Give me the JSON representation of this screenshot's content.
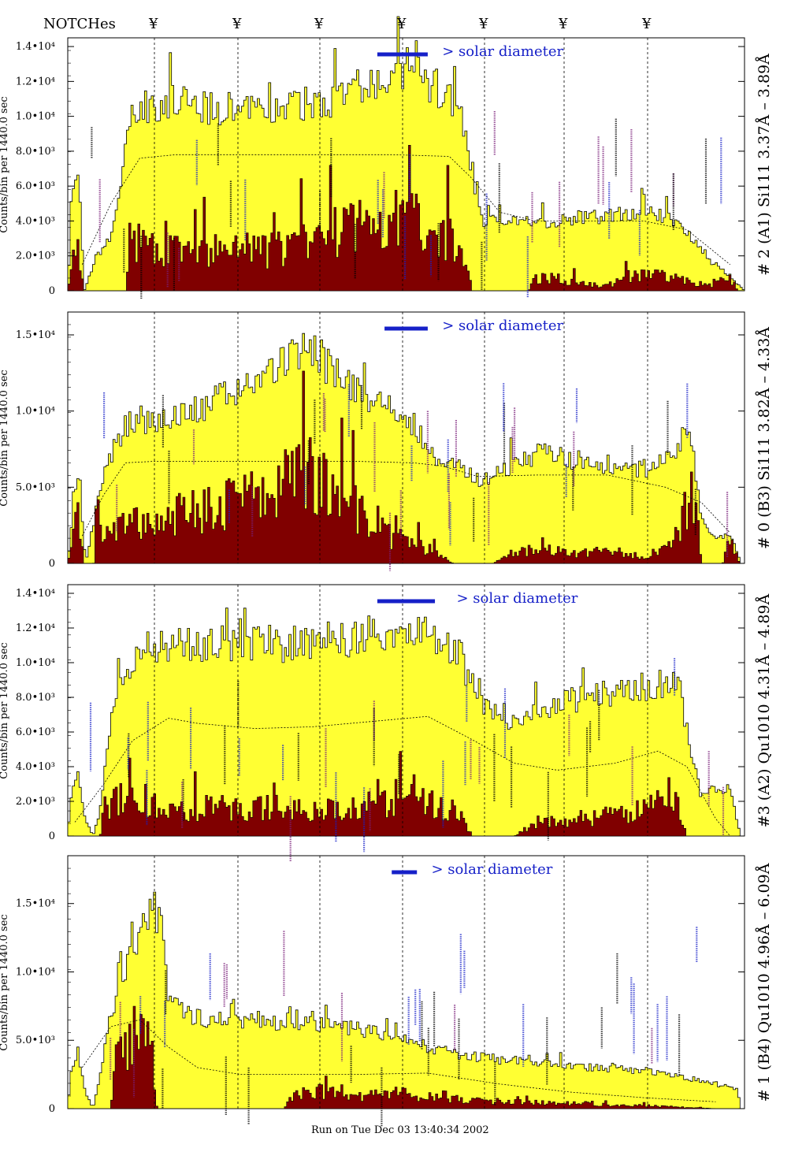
{
  "notches_label": "NOTCHes",
  "notch_symbol": "¥",
  "solar_text": "> solar diameter",
  "footer": "Run on Tue Dec 03 13:40:34 2002",
  "colors": {
    "yellow": "#ffff33",
    "maroon": "#800000",
    "blue": "#1620c8",
    "purple": "#7a1f7a"
  },
  "chart_data": [
    {
      "type": "bar",
      "title": "# 2 (A1) Si111 3.37Å – 3.89Å",
      "ylabel": "Counts/bin per 1440.0 sec",
      "ylim": [
        0,
        14500
      ],
      "yticks": [
        {
          "v": 0,
          "t": "0"
        },
        {
          "v": 2000,
          "t": "2.0•10³"
        },
        {
          "v": 4000,
          "t": "4.0•10³"
        },
        {
          "v": 6000,
          "t": "6.0•10³"
        },
        {
          "v": 8000,
          "t": "8.0•10³"
        },
        {
          "v": 10000,
          "t": "1.0•10⁴"
        },
        {
          "v": 12000,
          "t": "1.2•10⁴"
        },
        {
          "v": 14000,
          "t": "1.4•10⁴"
        }
      ],
      "total_envelope": [
        [
          0,
          0
        ],
        [
          0.5,
          5200
        ],
        [
          1.5,
          6500
        ],
        [
          2.3,
          0
        ],
        [
          4,
          2000
        ],
        [
          6,
          3000
        ],
        [
          7.5,
          6500
        ],
        [
          9,
          10400
        ],
        [
          12,
          10800
        ],
        [
          18,
          10600
        ],
        [
          25,
          10200
        ],
        [
          30,
          10400
        ],
        [
          36,
          11000
        ],
        [
          42,
          11600
        ],
        [
          48,
          12400
        ],
        [
          52,
          11400
        ],
        [
          55,
          9500
        ],
        [
          57,
          5000
        ],
        [
          58,
          3800
        ],
        [
          60,
          4200
        ],
        [
          65,
          3900
        ],
        [
          70,
          4100
        ],
        [
          75,
          4300
        ],
        [
          80,
          4600
        ],
        [
          84,
          4100
        ],
        [
          87,
          3000
        ],
        [
          89,
          1800
        ],
        [
          91,
          1200
        ],
        [
          93,
          400
        ],
        [
          94,
          0
        ]
      ],
      "inner_envelope": [
        [
          0,
          0
        ],
        [
          0.6,
          2000
        ],
        [
          1.5,
          2800
        ],
        [
          2.2,
          0
        ],
        [
          8.2,
          0
        ],
        [
          8.5,
          3000
        ],
        [
          12,
          2600
        ],
        [
          18,
          2400
        ],
        [
          24,
          2400
        ],
        [
          30,
          2600
        ],
        [
          36,
          3300
        ],
        [
          40,
          4200
        ],
        [
          44,
          4200
        ],
        [
          48,
          4600
        ],
        [
          52,
          3600
        ],
        [
          55,
          2200
        ],
        [
          56.2,
          0
        ],
        [
          64,
          0
        ],
        [
          65,
          800
        ],
        [
          70,
          600
        ],
        [
          75,
          300
        ],
        [
          78,
          900
        ],
        [
          82,
          1000
        ],
        [
          86,
          600
        ],
        [
          89,
          300
        ],
        [
          92,
          800
        ],
        [
          93.2,
          0
        ]
      ],
      "dashed_profile": [
        [
          2,
          1500
        ],
        [
          6,
          5000
        ],
        [
          10,
          7600
        ],
        [
          15,
          7800
        ],
        [
          25,
          7800
        ],
        [
          35,
          7800
        ],
        [
          45,
          7800
        ],
        [
          53,
          7700
        ],
        [
          56,
          6500
        ],
        [
          60,
          4500
        ],
        [
          65,
          4000
        ],
        [
          80,
          4000
        ],
        [
          86,
          3500
        ],
        [
          92,
          1500
        ]
      ],
      "solar_bar": [
        43,
        50
      ],
      "solar_label_x": 52
    },
    {
      "type": "bar",
      "title": "# 0 (B3) Si111 3.82Å – 4.33Å",
      "ylabel": "Counts/bin per 1440.0 sec",
      "ylim": [
        0,
        16500
      ],
      "yticks": [
        {
          "v": 0,
          "t": "0"
        },
        {
          "v": 5000,
          "t": "5.0•10³"
        },
        {
          "v": 10000,
          "t": "1.0•10⁴"
        },
        {
          "v": 15000,
          "t": "1.5•10⁴"
        }
      ],
      "total_envelope": [
        [
          0,
          0
        ],
        [
          0.8,
          4000
        ],
        [
          1.5,
          6500
        ],
        [
          2.5,
          0
        ],
        [
          3.5,
          2500
        ],
        [
          5,
          6000
        ],
        [
          8,
          9000
        ],
        [
          12,
          9500
        ],
        [
          18,
          10000
        ],
        [
          24,
          11500
        ],
        [
          28,
          12500
        ],
        [
          32,
          14000
        ],
        [
          35,
          13500
        ],
        [
          38,
          12000
        ],
        [
          42,
          11000
        ],
        [
          45,
          10000
        ],
        [
          48,
          9000
        ],
        [
          51,
          7000
        ],
        [
          53,
          6500
        ],
        [
          58,
          5400
        ],
        [
          62,
          6500
        ],
        [
          66,
          7400
        ],
        [
          70,
          6800
        ],
        [
          75,
          6500
        ],
        [
          80,
          6200
        ],
        [
          84,
          7000
        ],
        [
          86,
          8800
        ],
        [
          87,
          7000
        ],
        [
          88,
          3000
        ],
        [
          90,
          1500
        ],
        [
          92,
          2000
        ],
        [
          93.5,
          0
        ]
      ],
      "inner_envelope": [
        [
          0,
          0
        ],
        [
          0.6,
          2500
        ],
        [
          1.5,
          3500
        ],
        [
          2.2,
          0
        ],
        [
          3.6,
          0
        ],
        [
          4,
          2800
        ],
        [
          8,
          2500
        ],
        [
          12,
          3200
        ],
        [
          18,
          3700
        ],
        [
          23,
          4500
        ],
        [
          27,
          4800
        ],
        [
          31,
          5800
        ],
        [
          35,
          6300
        ],
        [
          38,
          5000
        ],
        [
          42,
          3000
        ],
        [
          45,
          1800
        ],
        [
          48,
          1500
        ],
        [
          51,
          800
        ],
        [
          53.5,
          0
        ],
        [
          59,
          0
        ],
        [
          62,
          800
        ],
        [
          66,
          1000
        ],
        [
          70,
          700
        ],
        [
          75,
          900
        ],
        [
          80,
          500
        ],
        [
          84,
          1200
        ],
        [
          86.5,
          4800
        ],
        [
          87.5,
          3000
        ],
        [
          88,
          0
        ],
        [
          91,
          0
        ],
        [
          92,
          1800
        ],
        [
          93.3,
          0
        ]
      ],
      "dashed_profile": [
        [
          2,
          1800
        ],
        [
          5,
          4500
        ],
        [
          8,
          6600
        ],
        [
          12,
          6700
        ],
        [
          20,
          6700
        ],
        [
          30,
          6700
        ],
        [
          40,
          6700
        ],
        [
          48,
          6600
        ],
        [
          52,
          6400
        ],
        [
          57,
          5700
        ],
        [
          65,
          5800
        ],
        [
          75,
          5800
        ],
        [
          83,
          5000
        ],
        [
          88,
          4000
        ],
        [
          92,
          2000
        ]
      ],
      "solar_bar": [
        44,
        50
      ],
      "solar_label_x": 52
    },
    {
      "type": "bar",
      "title": "#3 (A2) Qu1010 4.31Å – 4.89Å",
      "ylabel": "Counts/bin per 1440.0 sec",
      "ylim": [
        0,
        14500
      ],
      "yticks": [
        {
          "v": 0,
          "t": "0"
        },
        {
          "v": 2000,
          "t": "2.0•10³"
        },
        {
          "v": 4000,
          "t": "4.0•10³"
        },
        {
          "v": 6000,
          "t": "6.0•10³"
        },
        {
          "v": 8000,
          "t": "8.0•10³"
        },
        {
          "v": 10000,
          "t": "1.0•10⁴"
        },
        {
          "v": 12000,
          "t": "1.2•10⁴"
        },
        {
          "v": 14000,
          "t": "1.4•10⁴"
        }
      ],
      "total_envelope": [
        [
          0,
          0
        ],
        [
          0.5,
          2500
        ],
        [
          1.5,
          3800
        ],
        [
          2.2,
          1200
        ],
        [
          3.5,
          0
        ],
        [
          4.5,
          1500
        ],
        [
          6,
          7000
        ],
        [
          9,
          10500
        ],
        [
          14,
          11200
        ],
        [
          20,
          11000
        ],
        [
          26,
          11200
        ],
        [
          32,
          11000
        ],
        [
          38,
          11400
        ],
        [
          44,
          11800
        ],
        [
          50,
          11800
        ],
        [
          54,
          10800
        ],
        [
          56,
          9000
        ],
        [
          58,
          7200
        ],
        [
          61,
          6600
        ],
        [
          65,
          7000
        ],
        [
          70,
          7800
        ],
        [
          75,
          8200
        ],
        [
          80,
          8600
        ],
        [
          83,
          8800
        ],
        [
          85,
          8500
        ],
        [
          86,
          6000
        ],
        [
          88,
          2200
        ],
        [
          90,
          2800
        ],
        [
          92,
          2600
        ],
        [
          93.5,
          0
        ]
      ],
      "inner_envelope": [
        [
          0,
          0
        ],
        [
          4.5,
          0
        ],
        [
          5,
          1800
        ],
        [
          9,
          2600
        ],
        [
          12,
          2000
        ],
        [
          16,
          1500
        ],
        [
          20,
          1800
        ],
        [
          24,
          1600
        ],
        [
          28,
          1800
        ],
        [
          34,
          1600
        ],
        [
          40,
          1800
        ],
        [
          46,
          2200
        ],
        [
          51,
          2000
        ],
        [
          54,
          1600
        ],
        [
          56.2,
          0
        ],
        [
          62,
          0
        ],
        [
          65,
          800
        ],
        [
          70,
          900
        ],
        [
          75,
          1200
        ],
        [
          80,
          1600
        ],
        [
          84,
          2800
        ],
        [
          85,
          1500
        ],
        [
          86,
          0
        ]
      ],
      "dashed_profile": [
        [
          1,
          800
        ],
        [
          5,
          3000
        ],
        [
          9,
          5500
        ],
        [
          14,
          6800
        ],
        [
          18,
          6500
        ],
        [
          26,
          6200
        ],
        [
          34,
          6300
        ],
        [
          42,
          6600
        ],
        [
          50,
          6900
        ],
        [
          56,
          5600
        ],
        [
          62,
          4200
        ],
        [
          68,
          3800
        ],
        [
          76,
          4200
        ],
        [
          82,
          4900
        ],
        [
          86,
          4000
        ],
        [
          90,
          1000
        ],
        [
          92,
          0
        ]
      ],
      "solar_bar": [
        43,
        51
      ],
      "solar_label_x": 54
    },
    {
      "type": "bar",
      "title": "# 1 (B4) Qu1010 4.96Å – 6.09Å",
      "ylabel": "Counts/bin per 1440.0 sec",
      "ylim": [
        0,
        18500
      ],
      "yticks": [
        {
          "v": 0,
          "t": "0"
        },
        {
          "v": 5000,
          "t": "5.0•10³"
        },
        {
          "v": 10000,
          "t": "1.0•10⁴"
        },
        {
          "v": 15000,
          "t": "1.5•10⁴"
        }
      ],
      "total_envelope": [
        [
          0,
          0
        ],
        [
          0.5,
          3200
        ],
        [
          1.5,
          4000
        ],
        [
          2.5,
          1200
        ],
        [
          3.5,
          0
        ],
        [
          4.5,
          2500
        ],
        [
          6,
          6500
        ],
        [
          8,
          10000
        ],
        [
          10,
          12500
        ],
        [
          12,
          14500
        ],
        [
          13,
          13000
        ],
        [
          14,
          8000
        ],
        [
          16,
          7000
        ],
        [
          20,
          6500
        ],
        [
          26,
          6500
        ],
        [
          32,
          6200
        ],
        [
          38,
          6000
        ],
        [
          44,
          5500
        ],
        [
          50,
          4500
        ],
        [
          56,
          3800
        ],
        [
          62,
          3500
        ],
        [
          68,
          3200
        ],
        [
          74,
          3000
        ],
        [
          80,
          2800
        ],
        [
          86,
          2300
        ],
        [
          90,
          1800
        ],
        [
          93,
          1500
        ],
        [
          93.5,
          0
        ]
      ],
      "inner_envelope": [
        [
          0,
          0
        ],
        [
          6,
          0
        ],
        [
          6.5,
          4000
        ],
        [
          9,
          5500
        ],
        [
          10.5,
          6500
        ],
        [
          11.5,
          5500
        ],
        [
          12.4,
          0
        ],
        [
          30,
          0
        ],
        [
          31,
          1000
        ],
        [
          35,
          1400
        ],
        [
          40,
          900
        ],
        [
          46,
          1200
        ],
        [
          52,
          800
        ],
        [
          58,
          600
        ],
        [
          64,
          500
        ],
        [
          70,
          400
        ],
        [
          76,
          300
        ],
        [
          82,
          200
        ],
        [
          90,
          0
        ]
      ],
      "dashed_profile": [
        [
          2,
          3000
        ],
        [
          6,
          6000
        ],
        [
          10,
          6500
        ],
        [
          14,
          4500
        ],
        [
          18,
          3000
        ],
        [
          24,
          2500
        ],
        [
          32,
          2500
        ],
        [
          40,
          2500
        ],
        [
          50,
          2600
        ],
        [
          60,
          1800
        ],
        [
          70,
          1200
        ],
        [
          80,
          800
        ],
        [
          90,
          500
        ]
      ],
      "solar_bar": [
        45,
        48.5
      ],
      "solar_label_x": 50.5
    }
  ]
}
